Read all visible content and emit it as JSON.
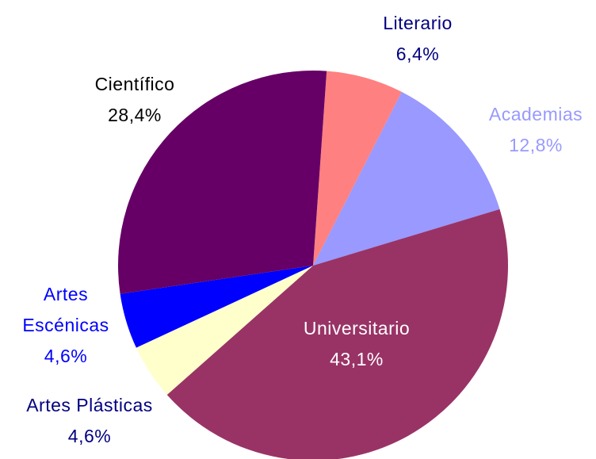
{
  "chart_data": {
    "type": "pie",
    "categories": [
      "Literario",
      "Academias",
      "Universitario",
      "Artes Plásticas",
      "Artes Escénicas",
      "Científico"
    ],
    "values": [
      6.4,
      12.8,
      43.1,
      4.6,
      4.6,
      28.4
    ],
    "value_labels": [
      "6,4%",
      "12,8%",
      "43,1%",
      "4,6%",
      "4,6%",
      "28,4%"
    ],
    "colors": [
      "#ff8080",
      "#9999ff",
      "#993366",
      "#ffffcc",
      "#0000ff",
      "#660066"
    ]
  }
}
